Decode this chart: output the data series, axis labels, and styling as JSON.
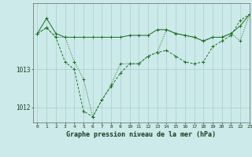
{
  "xlabel": "Graphe pression niveau de la mer (hPa)",
  "xlim": [
    -0.5,
    23
  ],
  "ylim": [
    1011.6,
    1014.75
  ],
  "yticks": [
    1012,
    1013
  ],
  "xticks": [
    0,
    1,
    2,
    3,
    4,
    5,
    6,
    7,
    8,
    9,
    10,
    11,
    12,
    13,
    14,
    15,
    16,
    17,
    18,
    19,
    20,
    21,
    22,
    23
  ],
  "background_color": "#cceaea",
  "grid_color": "#aacccc",
  "line_color": "#1a6e1a",
  "series1_x": [
    0,
    1,
    2,
    3,
    4,
    5,
    6,
    7,
    8,
    9,
    10,
    11,
    12,
    13,
    14,
    15,
    16,
    17,
    18,
    19,
    20,
    21,
    22,
    23
  ],
  "series1_y": [
    1013.95,
    1014.35,
    1013.95,
    1013.85,
    1013.85,
    1013.85,
    1013.85,
    1013.85,
    1013.85,
    1013.85,
    1013.9,
    1013.9,
    1013.9,
    1014.05,
    1014.05,
    1013.95,
    1013.9,
    1013.85,
    1013.75,
    1013.85,
    1013.85,
    1013.95,
    1014.15,
    1014.45
  ],
  "series2_x": [
    0,
    1,
    2,
    3,
    4,
    5,
    6,
    7,
    8,
    9,
    10,
    11,
    12,
    13,
    14,
    15,
    16,
    17,
    18,
    19,
    20,
    21,
    22,
    23
  ],
  "series2_y": [
    1013.95,
    1014.1,
    1013.85,
    1013.2,
    1013.0,
    1011.9,
    1011.75,
    1012.2,
    1012.55,
    1012.9,
    1013.15,
    1013.15,
    1013.35,
    1013.45,
    1013.5,
    1013.35,
    1013.2,
    1013.15,
    1013.2,
    1013.6,
    1013.75,
    1013.9,
    1014.3,
    1014.45
  ],
  "series3_x": [
    0,
    1,
    2,
    3,
    4,
    5,
    6,
    7,
    8,
    9,
    10,
    11,
    12,
    13,
    14,
    15,
    16,
    17,
    18,
    19,
    20,
    21,
    22,
    23
  ],
  "series3_y": [
    1013.95,
    1014.1,
    1013.85,
    1013.85,
    1013.2,
    1012.75,
    1011.75,
    1012.2,
    1012.6,
    1013.15,
    1013.15,
    1013.15,
    1013.35,
    1013.45,
    1014.05,
    1013.95,
    1013.9,
    1013.85,
    1013.75,
    1013.85,
    1013.85,
    1013.95,
    1013.75,
    1014.45
  ]
}
